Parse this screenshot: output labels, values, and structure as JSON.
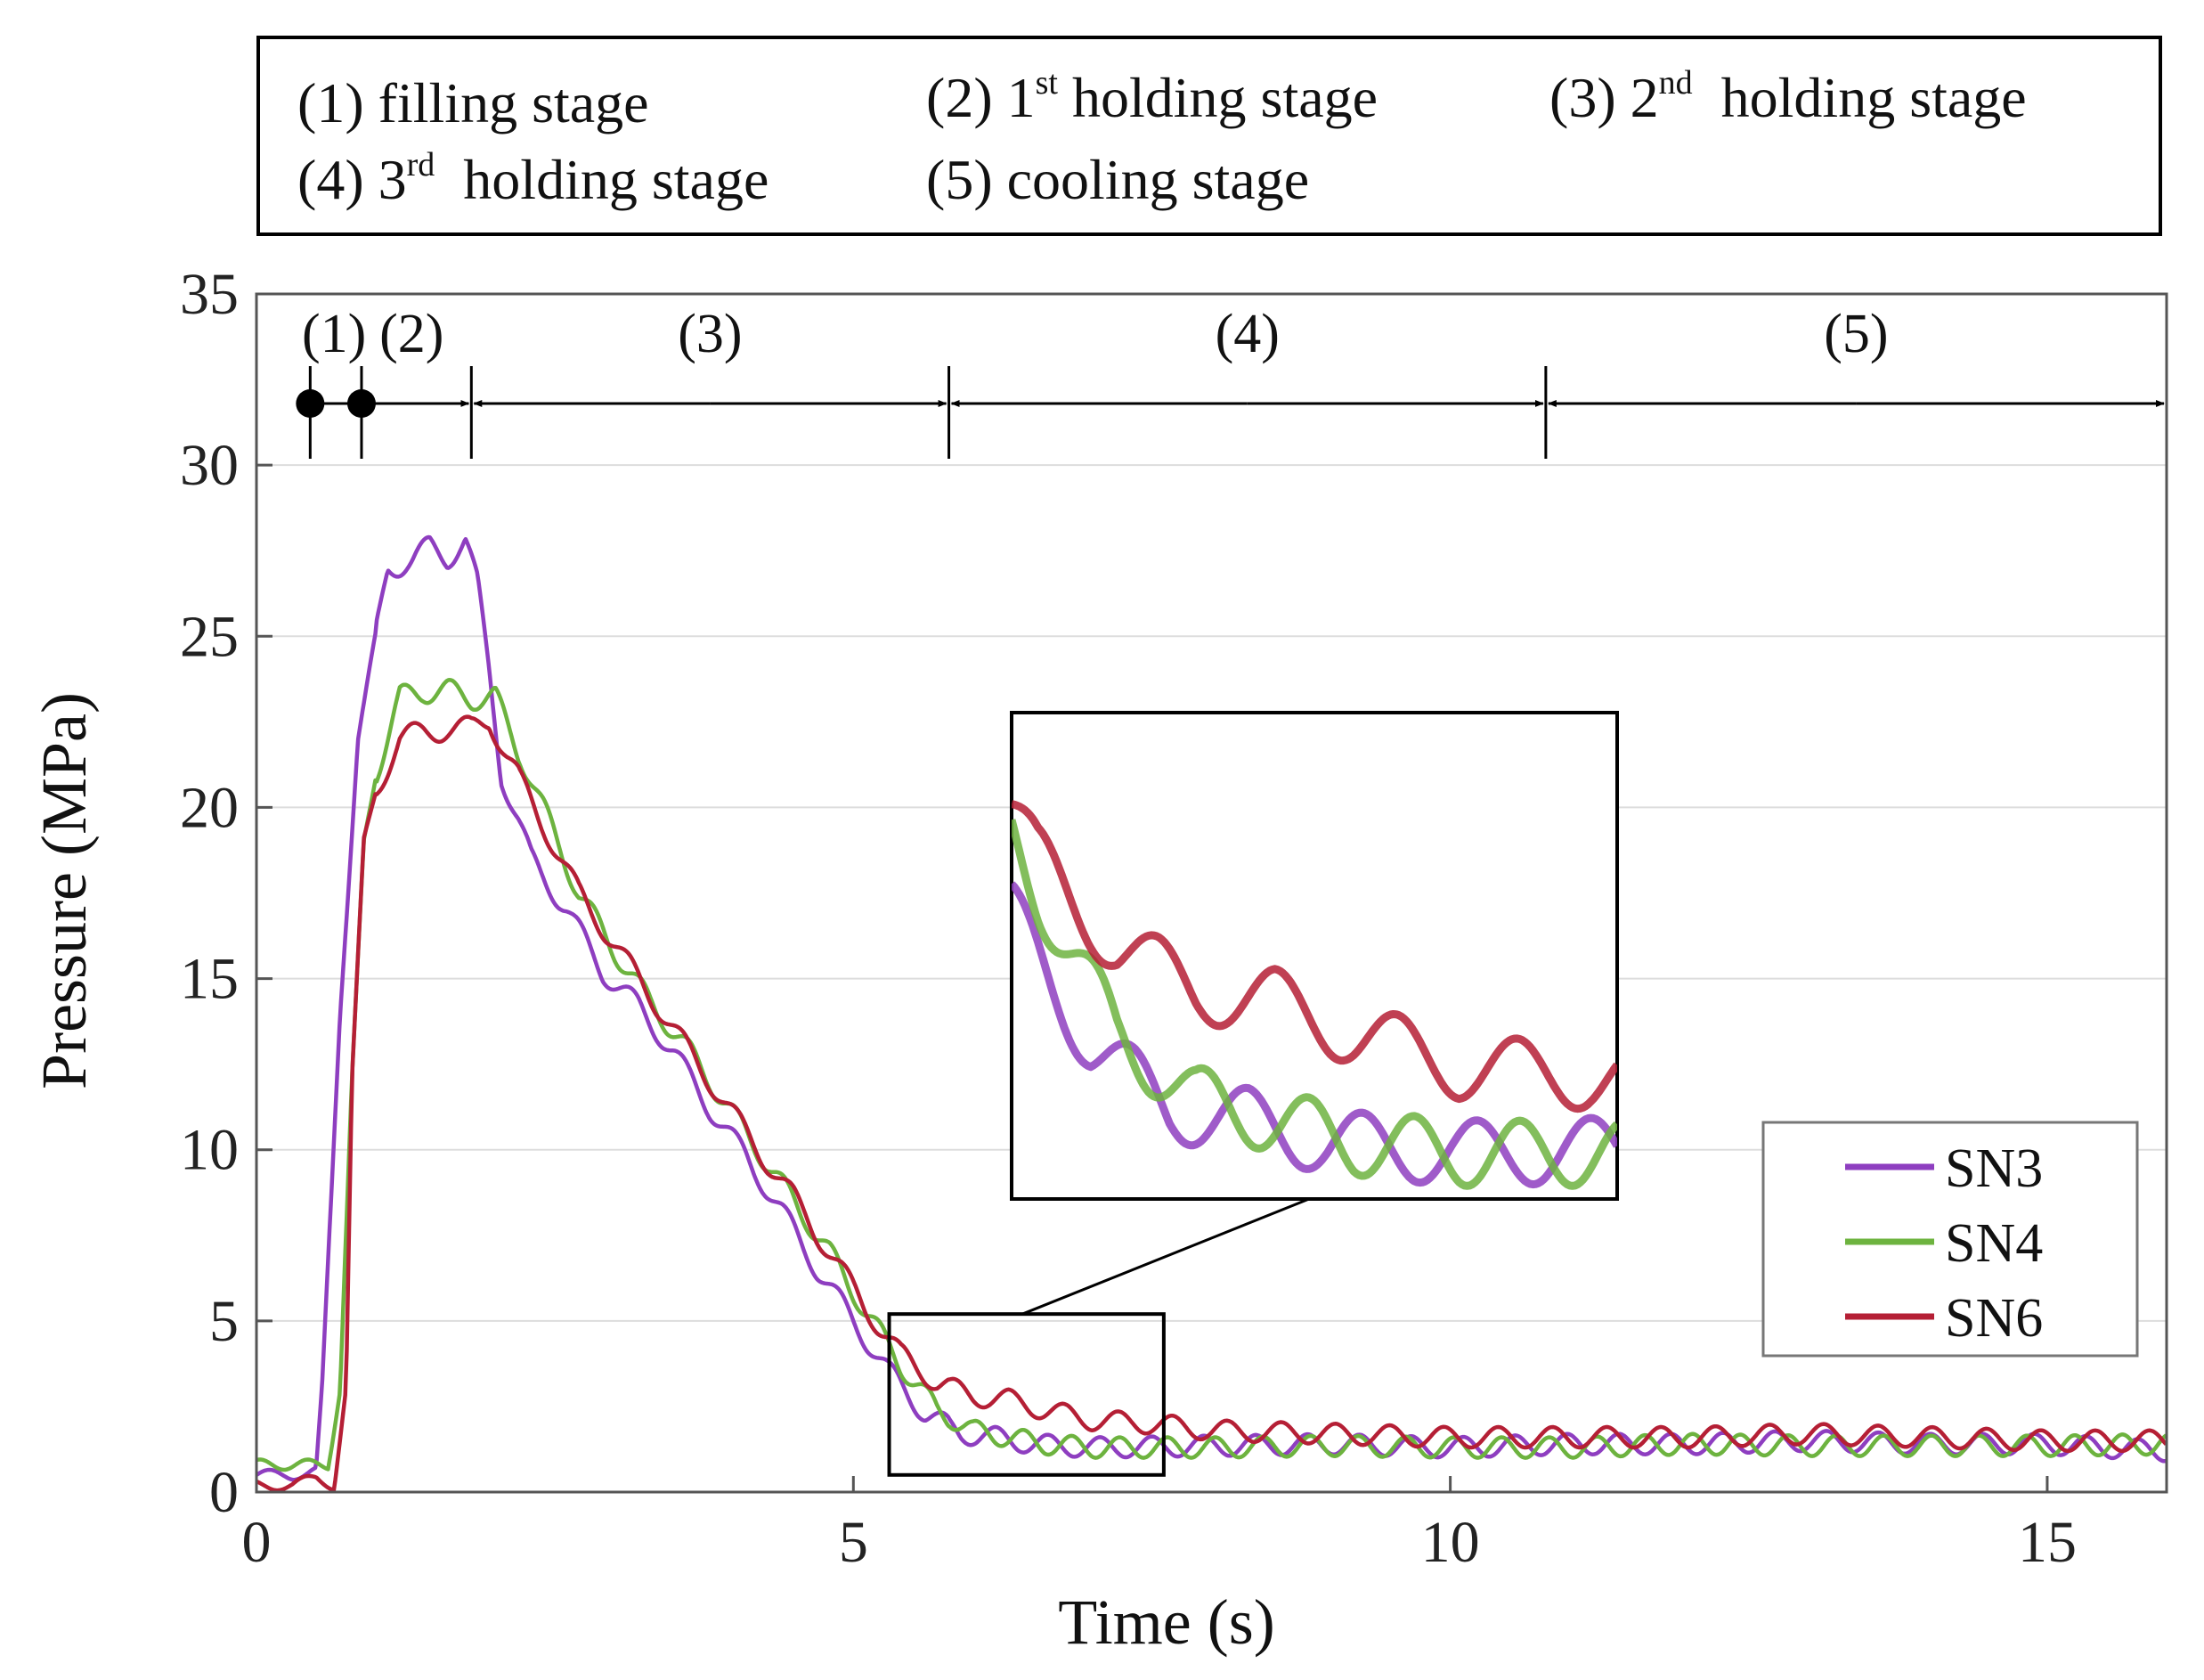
{
  "stage_legend": {
    "s1": {
      "prefix": "(1)",
      "text": "filling stage"
    },
    "s2": {
      "prefix": "(2) 1",
      "sup": "st",
      "text": " holding stage"
    },
    "s3": {
      "prefix": "(3) 2",
      "sup": "nd",
      "text": "  holding stage"
    },
    "s4": {
      "prefix": "(4) 3",
      "sup": "rd",
      "text": "  holding stage"
    },
    "s5": {
      "prefix": "(5)",
      "text": "cooling stage"
    }
  },
  "colors": {
    "SN3": "#8e3ec0",
    "SN4": "#6db33f",
    "SN6": "#b51f35",
    "grid": "#dddddd"
  },
  "chart_data": {
    "type": "line",
    "xlabel": "Time (s)",
    "ylabel": "Pressure (MPa)",
    "xlim": [
      0,
      16
    ],
    "ylim": [
      0,
      35
    ],
    "xticks": [
      0,
      5,
      10,
      15
    ],
    "yticks": [
      0,
      5,
      10,
      15,
      20,
      25,
      30,
      35
    ],
    "grid": "horizontal",
    "legend_position": "bottom-right",
    "stages": {
      "labels": [
        "(1)",
        "(2)",
        "(3)",
        "(4)",
        "(5)"
      ],
      "boundaries_s": [
        0.45,
        0.88,
        1.8,
        5.8,
        10.8,
        16.0
      ],
      "arrow_y_mpa": 31.8
    },
    "series": [
      {
        "name": "SN3",
        "x": [
          0,
          0.3,
          0.5,
          0.55,
          0.7,
          0.85,
          0.95,
          1.1,
          1.3,
          1.45,
          1.6,
          1.75,
          1.85,
          1.95,
          2.05,
          2.3,
          2.6,
          2.9,
          3.2,
          3.5,
          3.8,
          4.1,
          4.4,
          4.7,
          5.0,
          5.3,
          5.6,
          5.9,
          6.2,
          6.5,
          7,
          8,
          9,
          10,
          11,
          12,
          13,
          14,
          15,
          16
        ],
        "y": [
          0.5,
          0.5,
          0.6,
          3,
          14,
          22,
          24,
          27,
          27.2,
          27.6,
          27.3,
          27.8,
          26.5,
          24,
          21,
          18.5,
          17,
          15.2,
          14.2,
          12.8,
          11.2,
          9.8,
          8.2,
          6.5,
          5,
          3.5,
          2.3,
          1.7,
          1.6,
          1.4,
          1.3,
          1.35,
          1.4,
          1.3,
          1.4,
          1.4,
          1.5,
          1.4,
          1.4,
          1.2
        ]
      },
      {
        "name": "SN4",
        "x": [
          0,
          0.3,
          0.6,
          0.7,
          0.8,
          0.9,
          1.0,
          1.2,
          1.4,
          1.6,
          1.8,
          2.0,
          2.15,
          2.4,
          2.7,
          3.0,
          3.3,
          3.6,
          3.9,
          4.2,
          4.5,
          4.8,
          5.1,
          5.4,
          5.7,
          6.0,
          6.3,
          6.6,
          7,
          8,
          9,
          10,
          11,
          12,
          13,
          14,
          15,
          16
        ],
        "y": [
          0.8,
          0.8,
          0.8,
          3,
          12,
          19,
          21,
          23.2,
          23.4,
          23.4,
          23.2,
          23.2,
          22,
          20,
          17.5,
          15.8,
          14.3,
          13,
          11.5,
          10,
          8.5,
          7,
          5.3,
          3.7,
          2.4,
          1.8,
          1.6,
          1.4,
          1.3,
          1.3,
          1.35,
          1.3,
          1.3,
          1.4,
          1.35,
          1.35,
          1.35,
          1.4
        ]
      },
      {
        "name": "SN6",
        "x": [
          0,
          0.3,
          0.5,
          0.65,
          0.75,
          0.8,
          0.9,
          1.0,
          1.2,
          1.4,
          1.6,
          1.8,
          1.95,
          2.1,
          2.4,
          2.7,
          3.0,
          3.3,
          3.6,
          3.9,
          4.2,
          4.5,
          4.8,
          5.1,
          5.4,
          5.7,
          6.0,
          6.3,
          6.6,
          7,
          7.5,
          8,
          9,
          10,
          11,
          12,
          13,
          14,
          15,
          16
        ],
        "y": [
          0.2,
          0.2,
          0.4,
          0.2,
          3,
          12,
          19,
          20.5,
          22,
          22.2,
          22.3,
          22.3,
          22.6,
          21.5,
          19.5,
          17.5,
          16,
          14.5,
          13,
          11.5,
          10,
          8.6,
          7,
          5.4,
          4,
          3.2,
          2.8,
          2.7,
          2.4,
          2.1,
          2.0,
          1.8,
          1.7,
          1.6,
          1.6,
          1.6,
          1.7,
          1.6,
          1.5,
          1.5
        ]
      }
    ],
    "inset": {
      "source_xlim": [
        5.3,
        7.6
      ],
      "source_ylim": [
        0.5,
        5.2
      ]
    }
  },
  "legend": {
    "items": [
      "SN3",
      "SN4",
      "SN6"
    ]
  }
}
